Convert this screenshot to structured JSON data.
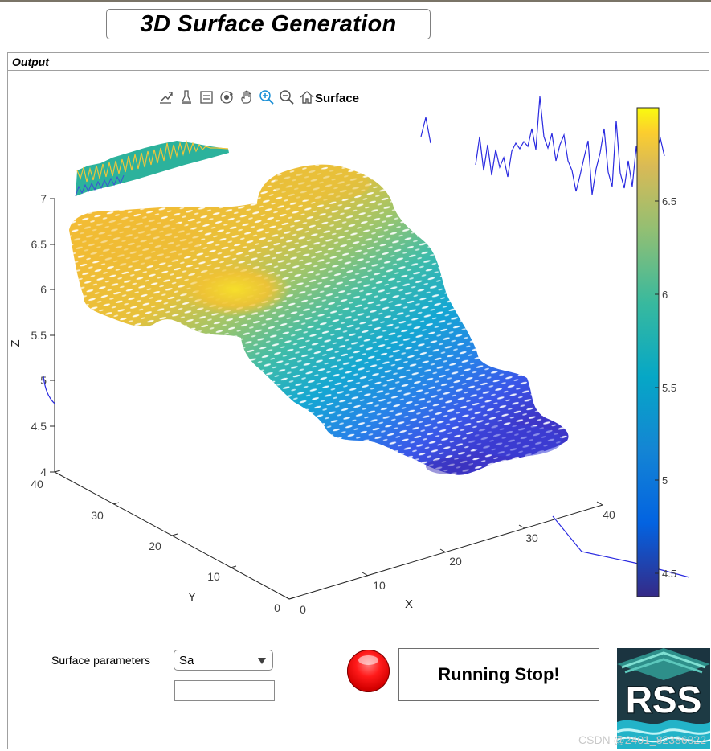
{
  "window": {
    "title": "3D Surface Generation"
  },
  "panel": {
    "title": "Output"
  },
  "axes": {
    "title": "Surface",
    "xlabel": "X",
    "ylabel": "Y",
    "zlabel": "Z",
    "z_ticks": [
      "7",
      "6.5",
      "6",
      "5.5",
      "5",
      "4.5",
      "4"
    ],
    "y_ticks": [
      "40",
      "30",
      "20",
      "10",
      "0"
    ],
    "x_ticks": [
      "0",
      "10",
      "20",
      "30",
      "40"
    ],
    "colorbar_ticks": [
      "6.5",
      "6",
      "5.5",
      "5",
      "4.5"
    ],
    "toolbar_icons": [
      "export-icon",
      "brush-icon",
      "datatip-icon",
      "rotate-icon",
      "pan-icon",
      "zoom-in-icon",
      "zoom-out-icon",
      "home-icon"
    ]
  },
  "chart_data": {
    "type": "surface",
    "title": "Surface",
    "xlabel": "X",
    "ylabel": "Y",
    "zlabel": "Z",
    "xlim": [
      0,
      40
    ],
    "ylim": [
      0,
      40
    ],
    "zlim": [
      4,
      7
    ],
    "colorbar": {
      "colormap": "parula",
      "range": [
        4.4,
        6.95
      ],
      "ticks": [
        4.5,
        5,
        5.5,
        6,
        6.5
      ]
    }
  },
  "controls": {
    "param_label": "Surface parameters",
    "param_selected": "Sa",
    "param_value": "",
    "run_button_label": "Running Stop!",
    "status_lamp_color": "#e00000"
  },
  "logo": {
    "text": "RSS"
  },
  "watermark": "CSDN @2401_82386822",
  "colors": {
    "parula_low": "#352a87",
    "parula_mid": "#1cb3c8",
    "parula_high": "#f9fb0e",
    "trace": "#2a2ae0"
  }
}
